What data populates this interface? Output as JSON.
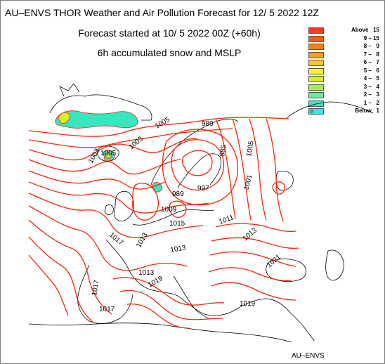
{
  "header": {
    "line1": "AU–ENVS THOR Weather and Air Pollution Forecast for 12/ 5 2022  12Z",
    "line2": "Forecast started at 10/ 5 2022  00Z (+60h)",
    "line3": "6h accumulated snow and MSLP"
  },
  "legend": [
    {
      "label": "Above   15",
      "color": "#ff3a1a"
    },
    {
      "label": "9 – 15",
      "color": "#ff5a10"
    },
    {
      "label": "8 –   9",
      "color": "#ff7e10"
    },
    {
      "label": "7 –   8",
      "color": "#ffa010"
    },
    {
      "label": "6 –   7",
      "color": "#ffc828"
    },
    {
      "label": "5 –   6",
      "color": "#ffee28"
    },
    {
      "label": "4 –   5",
      "color": "#d8f028"
    },
    {
      "label": "3 –   4",
      "color": "#a8e85a"
    },
    {
      "label": "2 –   3",
      "color": "#6ee896"
    },
    {
      "label": "1 –   2",
      "color": "#38e6c0"
    },
    {
      "label": "Below   1",
      "color": "#38e6e6",
      "swatch_text": "p"
    }
  ],
  "isobar_labels": [
    "1005",
    "1003",
    "1003",
    "1005",
    "989",
    "985",
    "1005",
    "1001",
    "989",
    "997",
    "1009",
    "1015",
    "1011",
    "1013",
    "1013",
    "1017",
    "1013",
    "1013",
    "1017",
    "1021",
    "1017",
    "1019",
    "1019"
  ],
  "footer": "AU–ENVS",
  "colors": {
    "isobar": "#ff2200",
    "coast": "#000000",
    "snow": "#38e6c0"
  }
}
